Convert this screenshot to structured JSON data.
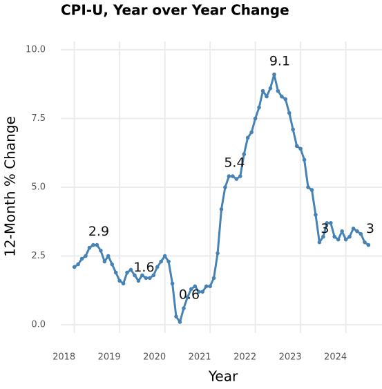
{
  "chart_data": {
    "type": "line",
    "title": "CPI-U, Year over Year Change",
    "x_label": "Year",
    "y_label": "12-Month % Change",
    "x": [
      2018.0,
      2018.083,
      2018.167,
      2018.25,
      2018.333,
      2018.417,
      2018.5,
      2018.583,
      2018.667,
      2018.75,
      2018.833,
      2018.917,
      2019.0,
      2019.083,
      2019.167,
      2019.25,
      2019.333,
      2019.417,
      2019.5,
      2019.583,
      2019.667,
      2019.75,
      2019.833,
      2019.917,
      2020.0,
      2020.083,
      2020.167,
      2020.25,
      2020.333,
      2020.417,
      2020.5,
      2020.583,
      2020.667,
      2020.75,
      2020.833,
      2020.917,
      2021.0,
      2021.083,
      2021.167,
      2021.25,
      2021.333,
      2021.417,
      2021.5,
      2021.583,
      2021.667,
      2021.75,
      2021.833,
      2021.917,
      2022.0,
      2022.083,
      2022.167,
      2022.25,
      2022.333,
      2022.417,
      2022.5,
      2022.583,
      2022.667,
      2022.75,
      2022.833,
      2022.917,
      2023.0,
      2023.083,
      2023.167,
      2023.25,
      2023.333,
      2023.417,
      2023.5,
      2023.583,
      2023.667,
      2023.75,
      2023.833,
      2023.917,
      2024.0,
      2024.083,
      2024.167,
      2024.25,
      2024.333,
      2024.417,
      2024.5
    ],
    "series": [
      {
        "color": "#4682b4",
        "values": [
          2.1,
          2.2,
          2.4,
          2.5,
          2.8,
          2.9,
          2.9,
          2.7,
          2.3,
          2.5,
          2.2,
          1.9,
          1.6,
          1.5,
          1.9,
          2.0,
          1.8,
          1.6,
          1.8,
          1.7,
          1.7,
          1.8,
          2.1,
          2.3,
          2.5,
          2.3,
          1.5,
          0.3,
          0.1,
          0.6,
          1.0,
          1.3,
          1.4,
          1.2,
          1.2,
          1.4,
          1.4,
          1.7,
          2.6,
          4.2,
          5.0,
          5.4,
          5.4,
          5.3,
          5.4,
          6.2,
          6.8,
          7.0,
          7.5,
          7.9,
          8.5,
          8.3,
          8.6,
          9.1,
          8.5,
          8.3,
          8.2,
          7.7,
          7.1,
          6.5,
          6.4,
          6.0,
          5.0,
          4.9,
          4.0,
          3.0,
          3.2,
          3.7,
          3.7,
          3.2,
          3.1,
          3.4,
          3.1,
          3.2,
          3.5,
          3.4,
          3.3,
          3.0,
          2.9
        ],
        "value_labels": [
          null,
          null,
          null,
          null,
          null,
          "2.9",
          null,
          null,
          null,
          null,
          null,
          null,
          null,
          null,
          null,
          null,
          null,
          "1.6",
          null,
          null,
          null,
          null,
          null,
          null,
          null,
          null,
          null,
          null,
          null,
          "0.6",
          null,
          null,
          null,
          null,
          null,
          null,
          null,
          null,
          null,
          null,
          null,
          "5.4",
          null,
          null,
          null,
          null,
          null,
          null,
          null,
          null,
          null,
          null,
          null,
          "9.1",
          null,
          null,
          null,
          null,
          null,
          null,
          null,
          null,
          null,
          null,
          null,
          "3",
          null,
          null,
          null,
          null,
          null,
          null,
          null,
          null,
          null,
          null,
          null,
          "3",
          null
        ]
      }
    ],
    "xlim": [
      2017.7,
      2024.8
    ],
    "xticks": [
      2018,
      2019,
      2020,
      2021,
      2022,
      2023,
      2024
    ],
    "ylim": [
      -0.3,
      10.3
    ],
    "yticks": [
      {
        "value": 0,
        "label": "0.0"
      },
      2.5,
      {
        "value": 5,
        "label": "5.0"
      },
      7.5,
      {
        "value": 10,
        "label": "10.0"
      }
    ],
    "grid": true
  }
}
